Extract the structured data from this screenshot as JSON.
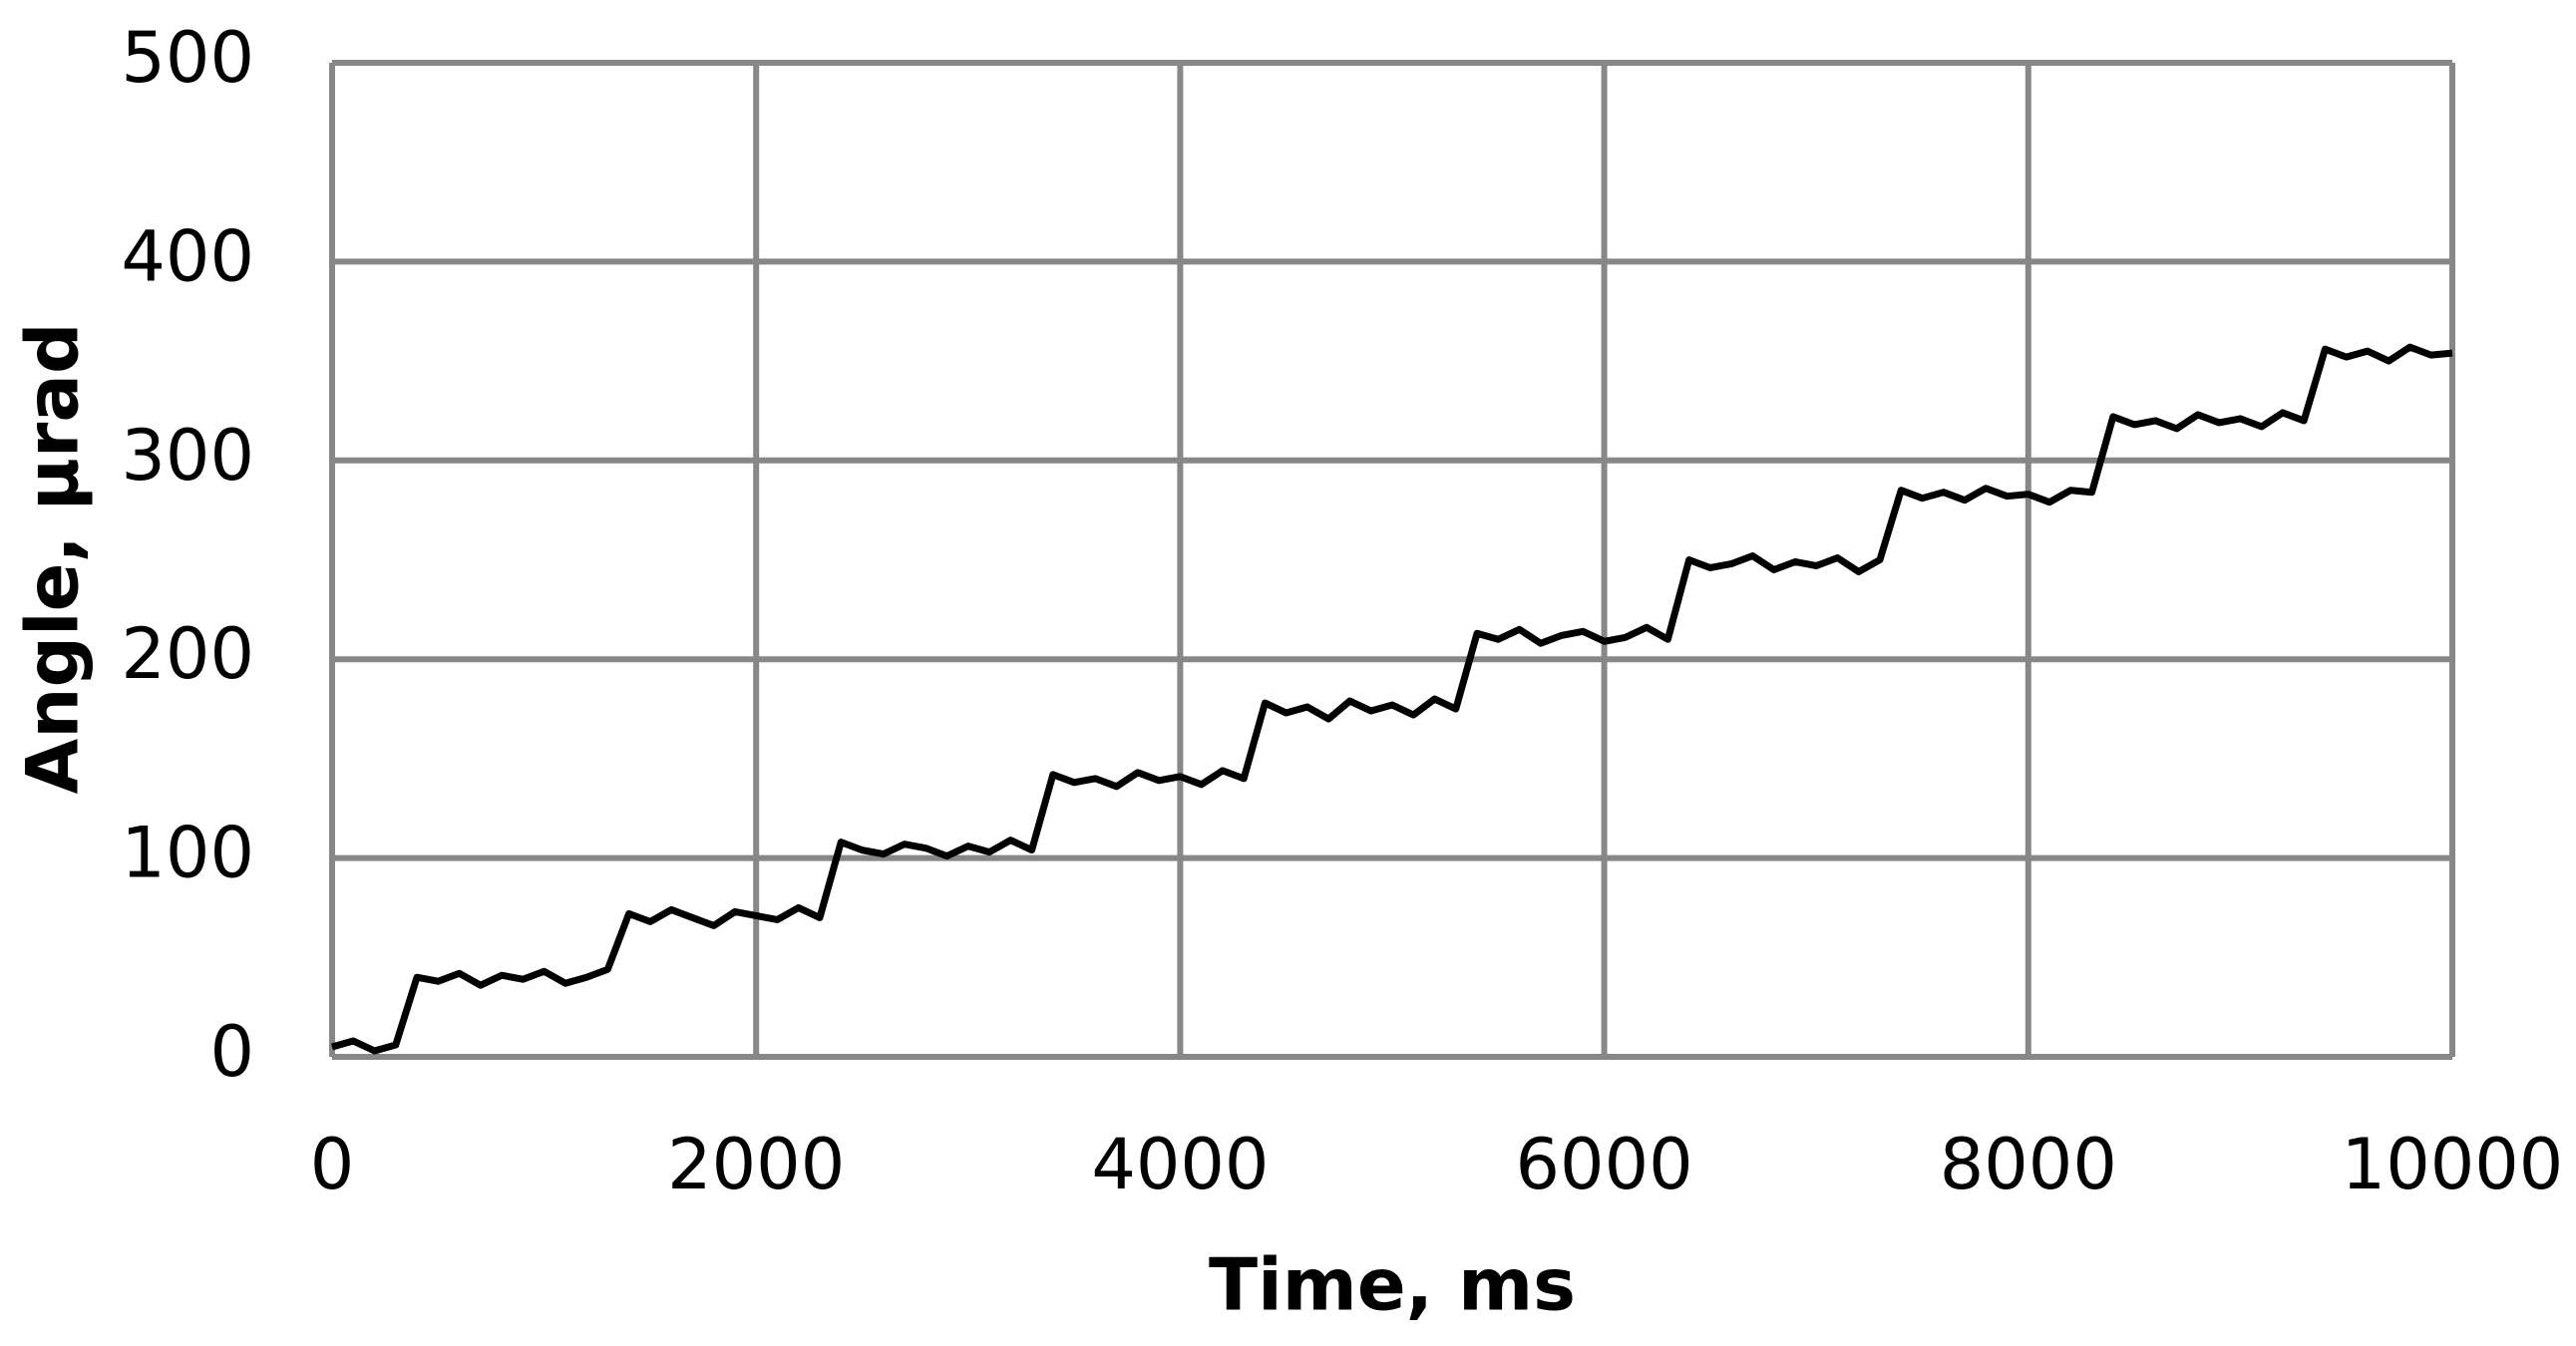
{
  "chart_data": {
    "type": "line",
    "x_label": "Time, ms",
    "y_label": "Angle, µrad",
    "xlim": [
      0,
      10000
    ],
    "xticks": [
      0,
      2000,
      4000,
      6000,
      8000,
      10000
    ],
    "ylim": [
      0,
      500
    ],
    "yticks": [
      0,
      100,
      200,
      300,
      400,
      500
    ],
    "grid": true,
    "x": [
      0,
      100,
      200,
      300,
      400,
      500,
      600,
      700,
      800,
      900,
      1000,
      1100,
      1200,
      1300,
      1400,
      1500,
      1600,
      1700,
      1800,
      1900,
      2000,
      2100,
      2200,
      2300,
      2400,
      2500,
      2600,
      2700,
      2800,
      2900,
      3000,
      3100,
      3200,
      3300,
      3400,
      3500,
      3600,
      3700,
      3800,
      3900,
      4000,
      4100,
      4200,
      4300,
      4400,
      4500,
      4600,
      4700,
      4800,
      4900,
      5000,
      5100,
      5200,
      5300,
      5400,
      5500,
      5600,
      5700,
      5800,
      5900,
      6000,
      6100,
      6200,
      6300,
      6400,
      6500,
      6600,
      6700,
      6800,
      6900,
      7000,
      7100,
      7200,
      7300,
      7400,
      7500,
      7600,
      7700,
      7800,
      7900,
      8000,
      8100,
      8200,
      8300,
      8400,
      8500,
      8600,
      8700,
      8800,
      8900,
      9000,
      9100,
      9200,
      9300,
      9400,
      9500,
      9600,
      9700,
      9800,
      9900,
      10000
    ],
    "series": [
      {
        "color": "#000000",
        "values": [
          5,
          8,
          3,
          6,
          40,
          38,
          42,
          36,
          41,
          39,
          43,
          37,
          40,
          44,
          72,
          68,
          74,
          70,
          66,
          73,
          71,
          69,
          75,
          70,
          108,
          104,
          102,
          107,
          105,
          101,
          106,
          103,
          109,
          104,
          142,
          138,
          140,
          136,
          143,
          139,
          141,
          137,
          144,
          140,
          178,
          173,
          176,
          170,
          179,
          174,
          177,
          172,
          180,
          175,
          213,
          210,
          215,
          208,
          212,
          214,
          209,
          211,
          216,
          210,
          250,
          246,
          248,
          252,
          245,
          249,
          247,
          251,
          244,
          250,
          285,
          281,
          284,
          280,
          286,
          282,
          283,
          279,
          285,
          284,
          322,
          318,
          320,
          316,
          323,
          319,
          321,
          317,
          324,
          320,
          356,
          352,
          355,
          350,
          357,
          353,
          354
        ]
      }
    ]
  }
}
